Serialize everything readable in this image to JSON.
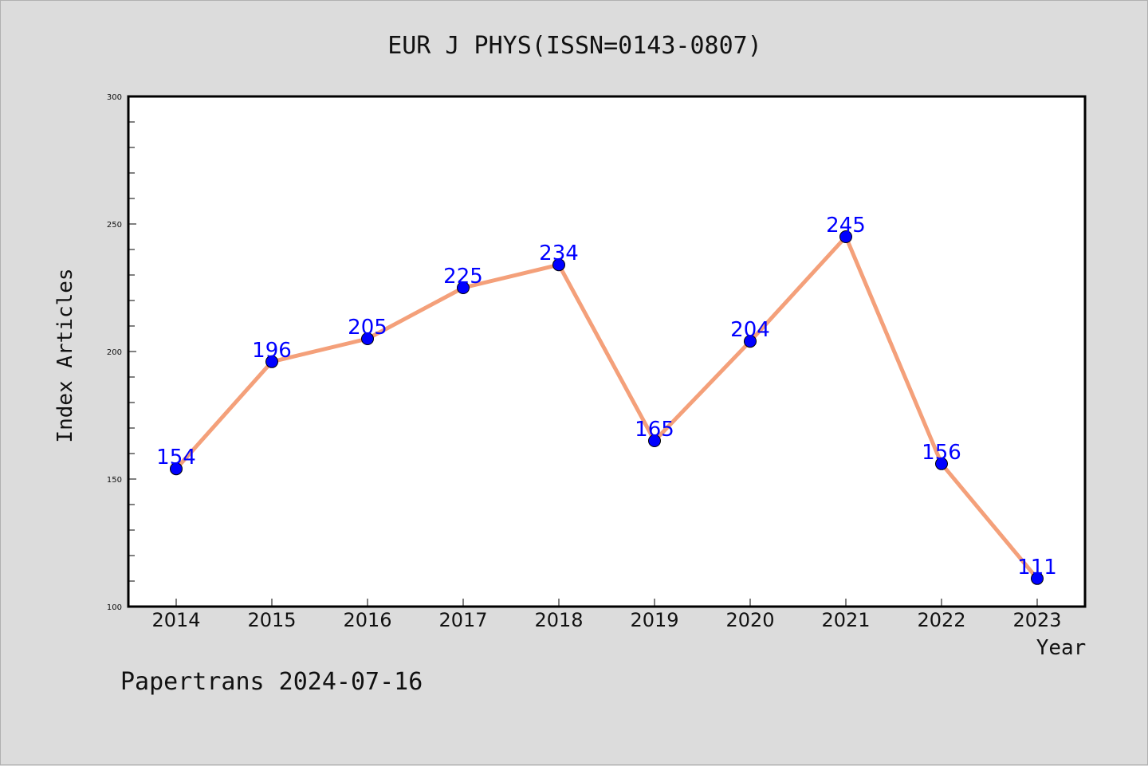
{
  "chart_data": {
    "type": "line",
    "title": "EUR J PHYS(ISSN=0143-0807)",
    "xlabel": "Year",
    "ylabel": "Index Articles",
    "categories": [
      "2014",
      "2015",
      "2016",
      "2017",
      "2018",
      "2019",
      "2020",
      "2021",
      "2022",
      "2023"
    ],
    "series": [
      {
        "values": [
          154,
          196,
          205,
          225,
          234,
          165,
          204,
          245,
          156,
          111
        ]
      }
    ],
    "ylim": [
      100,
      300
    ],
    "yticks": [
      "100",
      "150",
      "200",
      "250",
      "300"
    ],
    "grid": false,
    "line_color": "#f4a07a",
    "marker_color": "#0000ff",
    "label_color": "#0000ff"
  },
  "footer": "Papertrans 2024-07-16"
}
